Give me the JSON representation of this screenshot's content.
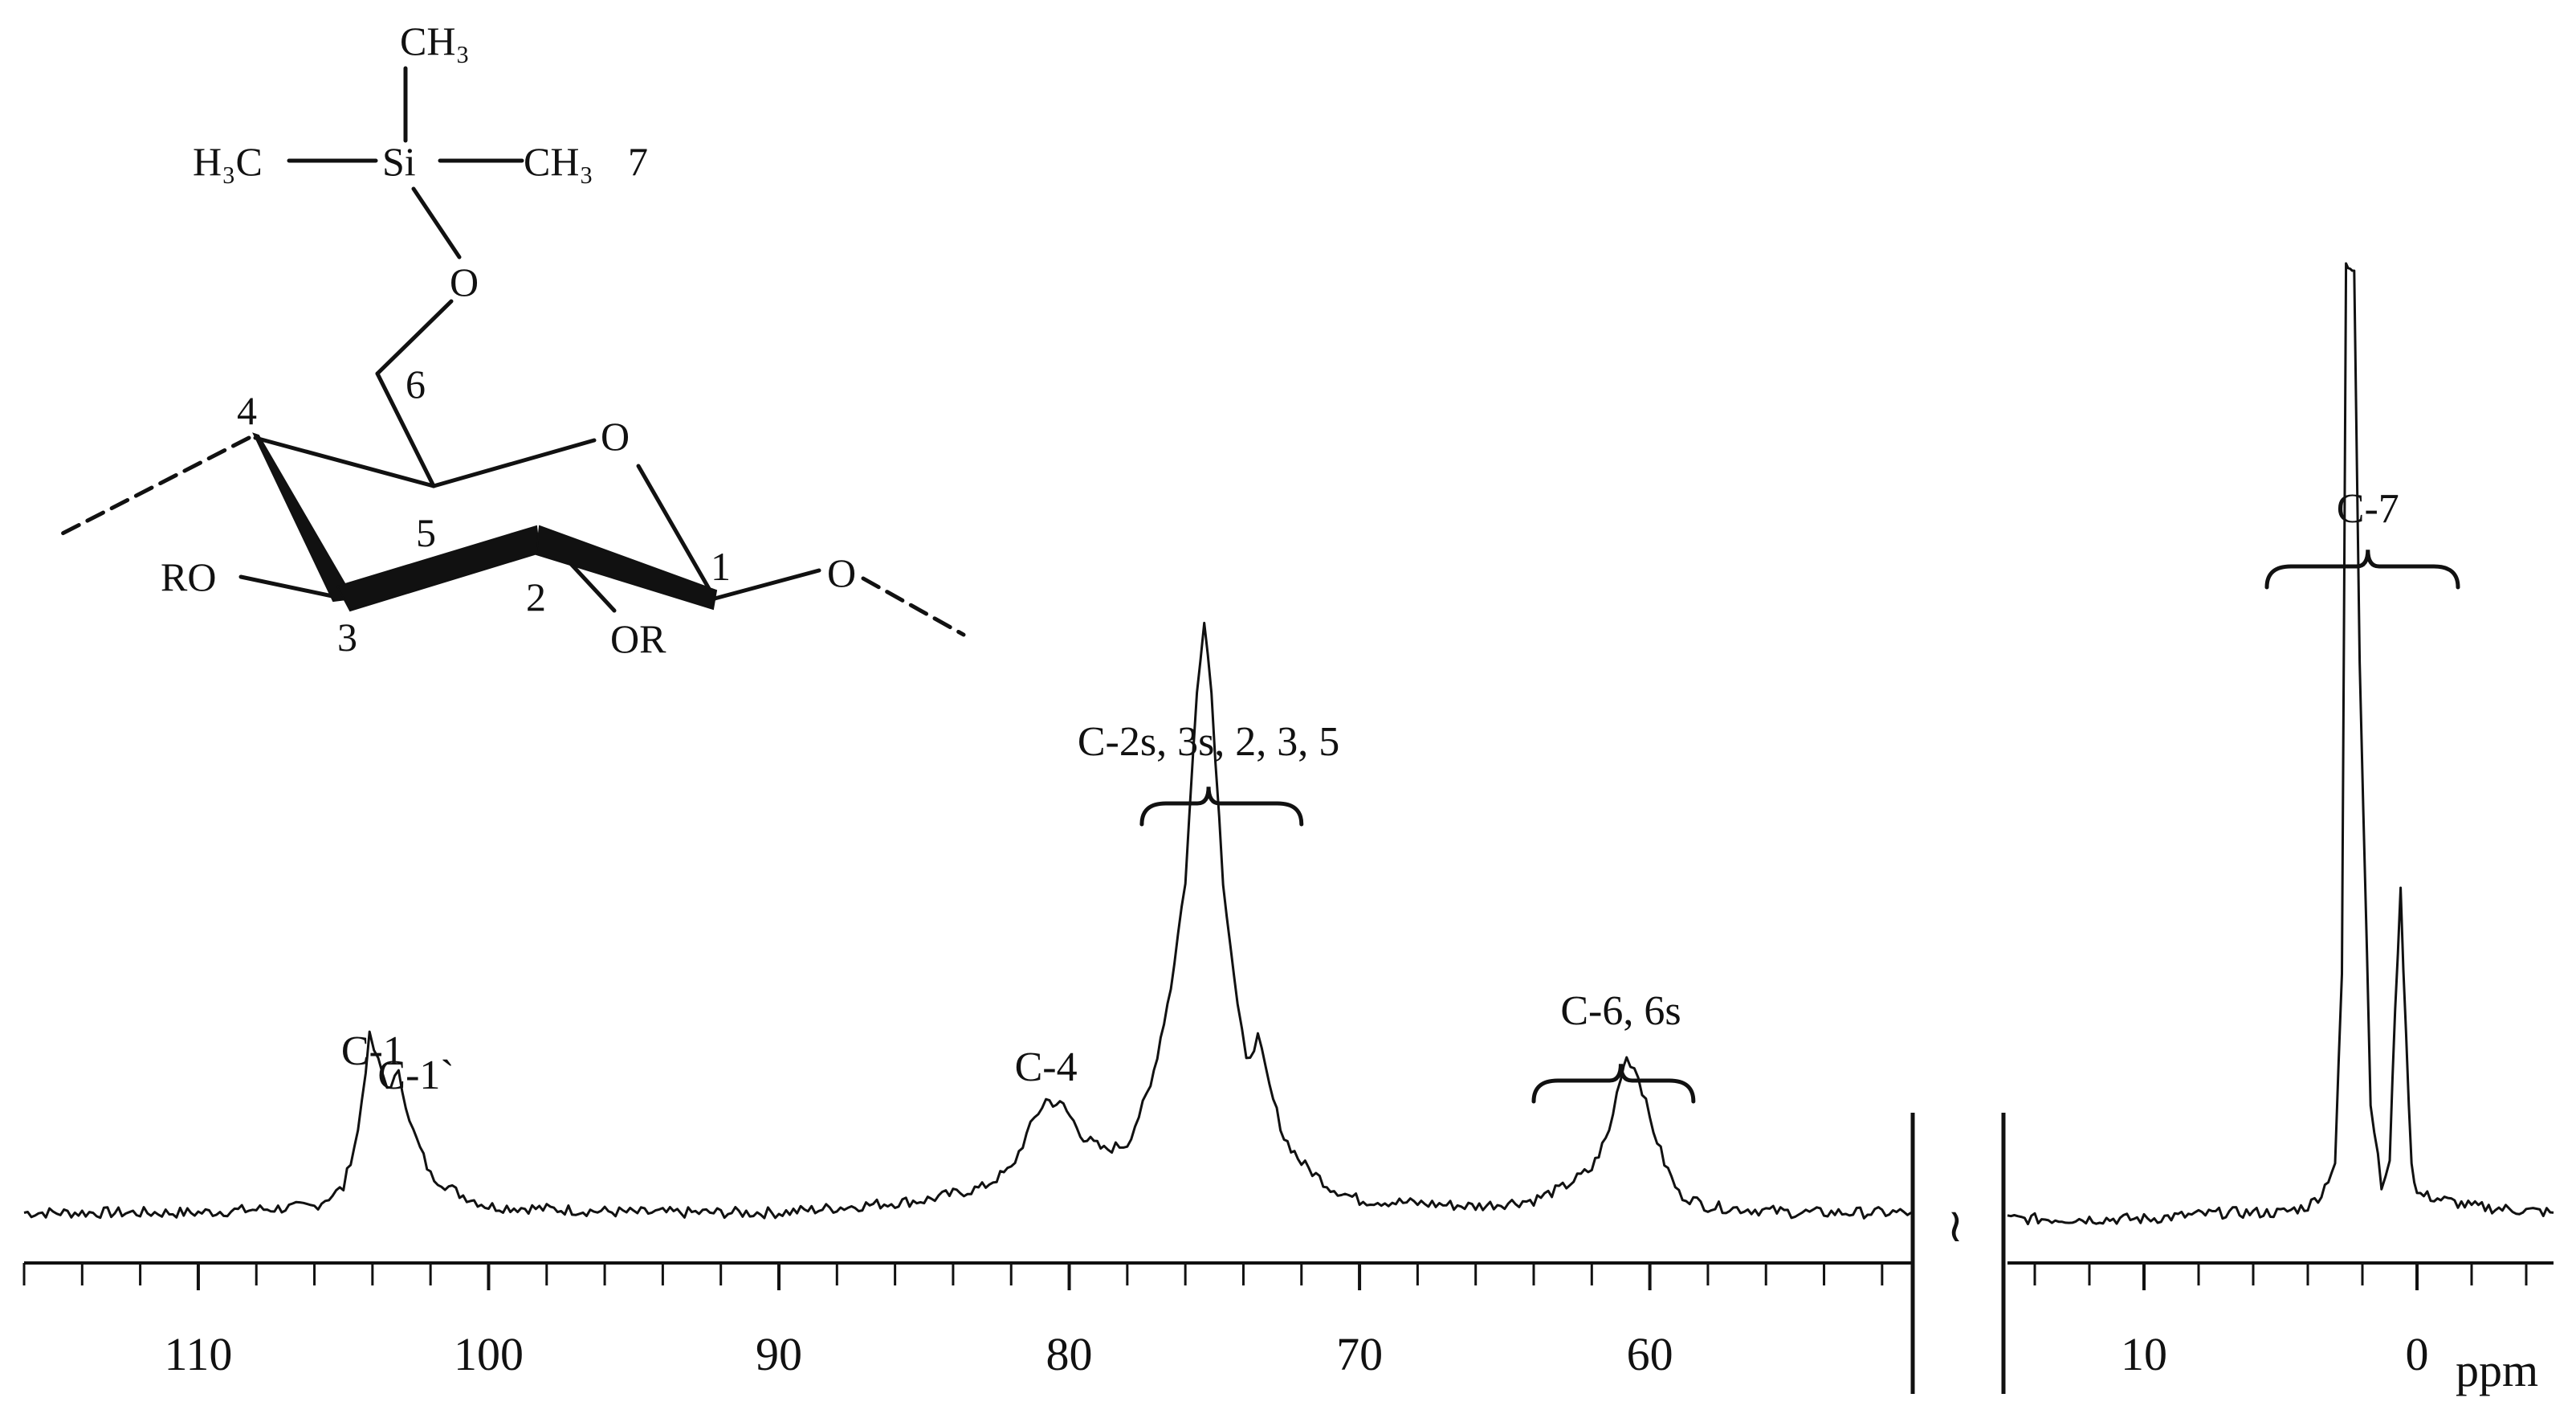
{
  "chart_data": {
    "type": "line",
    "title": "",
    "xlabel": "ppm",
    "ylabel": "",
    "x_reversed": true,
    "axis_break": "≀",
    "panels": [
      {
        "xlim": [
          116,
          51
        ],
        "ticks": [
          110,
          100,
          90,
          80,
          70,
          60
        ]
      },
      {
        "xlim": [
          15,
          -5
        ],
        "ticks": [
          10,
          0
        ]
      }
    ],
    "series": [
      {
        "points": [
          [
            116,
            0.02
          ],
          [
            110,
            0.02
          ],
          [
            106,
            0.03
          ],
          [
            105,
            0.06
          ],
          [
            104.5,
            0.15
          ],
          [
            104.1,
            0.3
          ],
          [
            103.8,
            0.26
          ],
          [
            103.5,
            0.22
          ],
          [
            103.1,
            0.24
          ],
          [
            102.6,
            0.15
          ],
          [
            102,
            0.08
          ],
          [
            101,
            0.05
          ],
          [
            100,
            0.03
          ],
          [
            95,
            0.02
          ],
          [
            90,
            0.02
          ],
          [
            85,
            0.04
          ],
          [
            83,
            0.06
          ],
          [
            82,
            0.09
          ],
          [
            81.2,
            0.17
          ],
          [
            80.8,
            0.2
          ],
          [
            80.2,
            0.19
          ],
          [
            79.5,
            0.14
          ],
          [
            78.8,
            0.12
          ],
          [
            78,
            0.13
          ],
          [
            77.2,
            0.22
          ],
          [
            76.5,
            0.38
          ],
          [
            76,
            0.55
          ],
          [
            75.6,
            0.85
          ],
          [
            75.35,
            0.97
          ],
          [
            75.1,
            0.85
          ],
          [
            74.7,
            0.55
          ],
          [
            74.2,
            0.35
          ],
          [
            73.9,
            0.26
          ],
          [
            73.5,
            0.3
          ],
          [
            73.1,
            0.22
          ],
          [
            72.6,
            0.14
          ],
          [
            72,
            0.1
          ],
          [
            71,
            0.06
          ],
          [
            70,
            0.04
          ],
          [
            66,
            0.03
          ],
          [
            64,
            0.04
          ],
          [
            63,
            0.06
          ],
          [
            62,
            0.09
          ],
          [
            61.4,
            0.15
          ],
          [
            61,
            0.24
          ],
          [
            60.8,
            0.27
          ],
          [
            60.4,
            0.24
          ],
          [
            60,
            0.17
          ],
          [
            59.5,
            0.1
          ],
          [
            59,
            0.05
          ],
          [
            58,
            0.03
          ],
          [
            55,
            0.02
          ],
          [
            51,
            0.02
          ]
        ]
      },
      {
        "points": [
          [
            15,
            0.01
          ],
          [
            10,
            0.01
          ],
          [
            7,
            0.02
          ],
          [
            5,
            0.02
          ],
          [
            4,
            0.03
          ],
          [
            3.5,
            0.05
          ],
          [
            3.0,
            0.1
          ],
          [
            2.75,
            0.4
          ],
          [
            2.6,
            1.53
          ],
          [
            2.45,
            1.53
          ],
          [
            2.3,
            1.53
          ],
          [
            2.1,
            0.9
          ],
          [
            1.7,
            0.2
          ],
          [
            1.3,
            0.06
          ],
          [
            1.0,
            0.1
          ],
          [
            0.8,
            0.35
          ],
          [
            0.6,
            0.53
          ],
          [
            0.4,
            0.3
          ],
          [
            0.2,
            0.1
          ],
          [
            0,
            0.05
          ],
          [
            -1,
            0.04
          ],
          [
            -2,
            0.03
          ],
          [
            -5,
            0.02
          ]
        ]
      }
    ],
    "peak_labels": [
      {
        "text": "C-1",
        "x": 104
      },
      {
        "text": "C-1`",
        "x": 102.5
      },
      {
        "text": "C-4",
        "x": 80.8
      },
      {
        "text": "C-2s, 3s, 2, 3, 5",
        "x": 75.2,
        "bracket": [
          77.5,
          72
        ]
      },
      {
        "text": "C-6, 6s",
        "x": 61,
        "bracket": [
          64,
          58.5
        ]
      },
      {
        "text": "C-7",
        "x": 1.8,
        "bracket": [
          5.5,
          -1.5
        ]
      }
    ],
    "molecule_labels": [
      {
        "text": "CH₃",
        "role": "methyl-top"
      },
      {
        "text": "H₃C",
        "role": "methyl-left"
      },
      {
        "text": "Si",
        "role": "silicon"
      },
      {
        "text": "CH₃",
        "role": "methyl-right"
      },
      {
        "text": "7",
        "role": "carbon-7"
      },
      {
        "text": "O",
        "role": "silyl-ether-oxygen"
      },
      {
        "text": "6",
        "role": "carbon-6"
      },
      {
        "text": "O",
        "role": "ring-oxygen"
      },
      {
        "text": "4",
        "role": "carbon-4"
      },
      {
        "text": "5",
        "role": "carbon-5"
      },
      {
        "text": "RO",
        "role": "substituent-3"
      },
      {
        "text": "3",
        "role": "carbon-3"
      },
      {
        "text": "2",
        "role": "carbon-2"
      },
      {
        "text": "OR",
        "role": "substituent-2"
      },
      {
        "text": "1",
        "role": "carbon-1"
      },
      {
        "text": "O",
        "role": "glycosidic-oxygen"
      }
    ]
  }
}
